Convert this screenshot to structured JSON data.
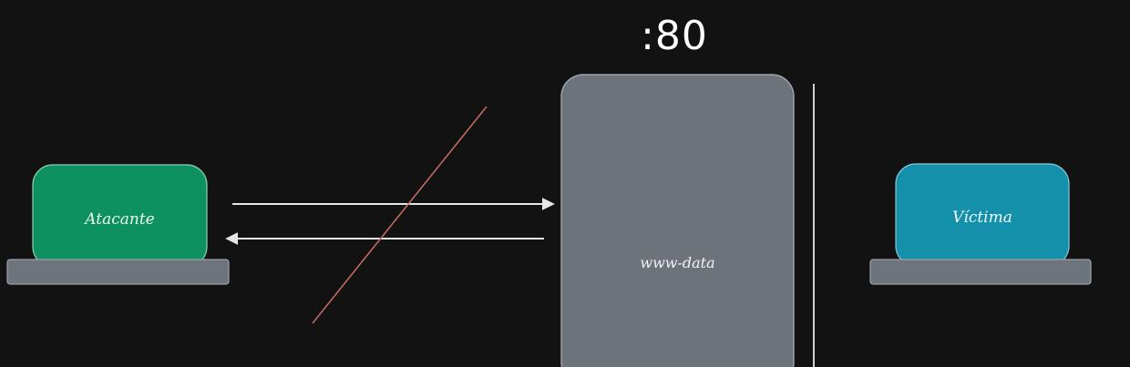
{
  "port": {
    "label": ":80"
  },
  "attacker": {
    "label": "Atacante",
    "color": "#0d9160",
    "base_color": "#6e747c"
  },
  "server": {
    "label": "www-data",
    "color": "#6d737b"
  },
  "victim": {
    "label": "Víctima",
    "color": "#1590aa",
    "base_color": "#6e747c"
  },
  "connections": {
    "arrow_color": "#e6e6e6",
    "blocked_strike_color": "#c26a62",
    "divider_color": "#cfcfcf"
  }
}
